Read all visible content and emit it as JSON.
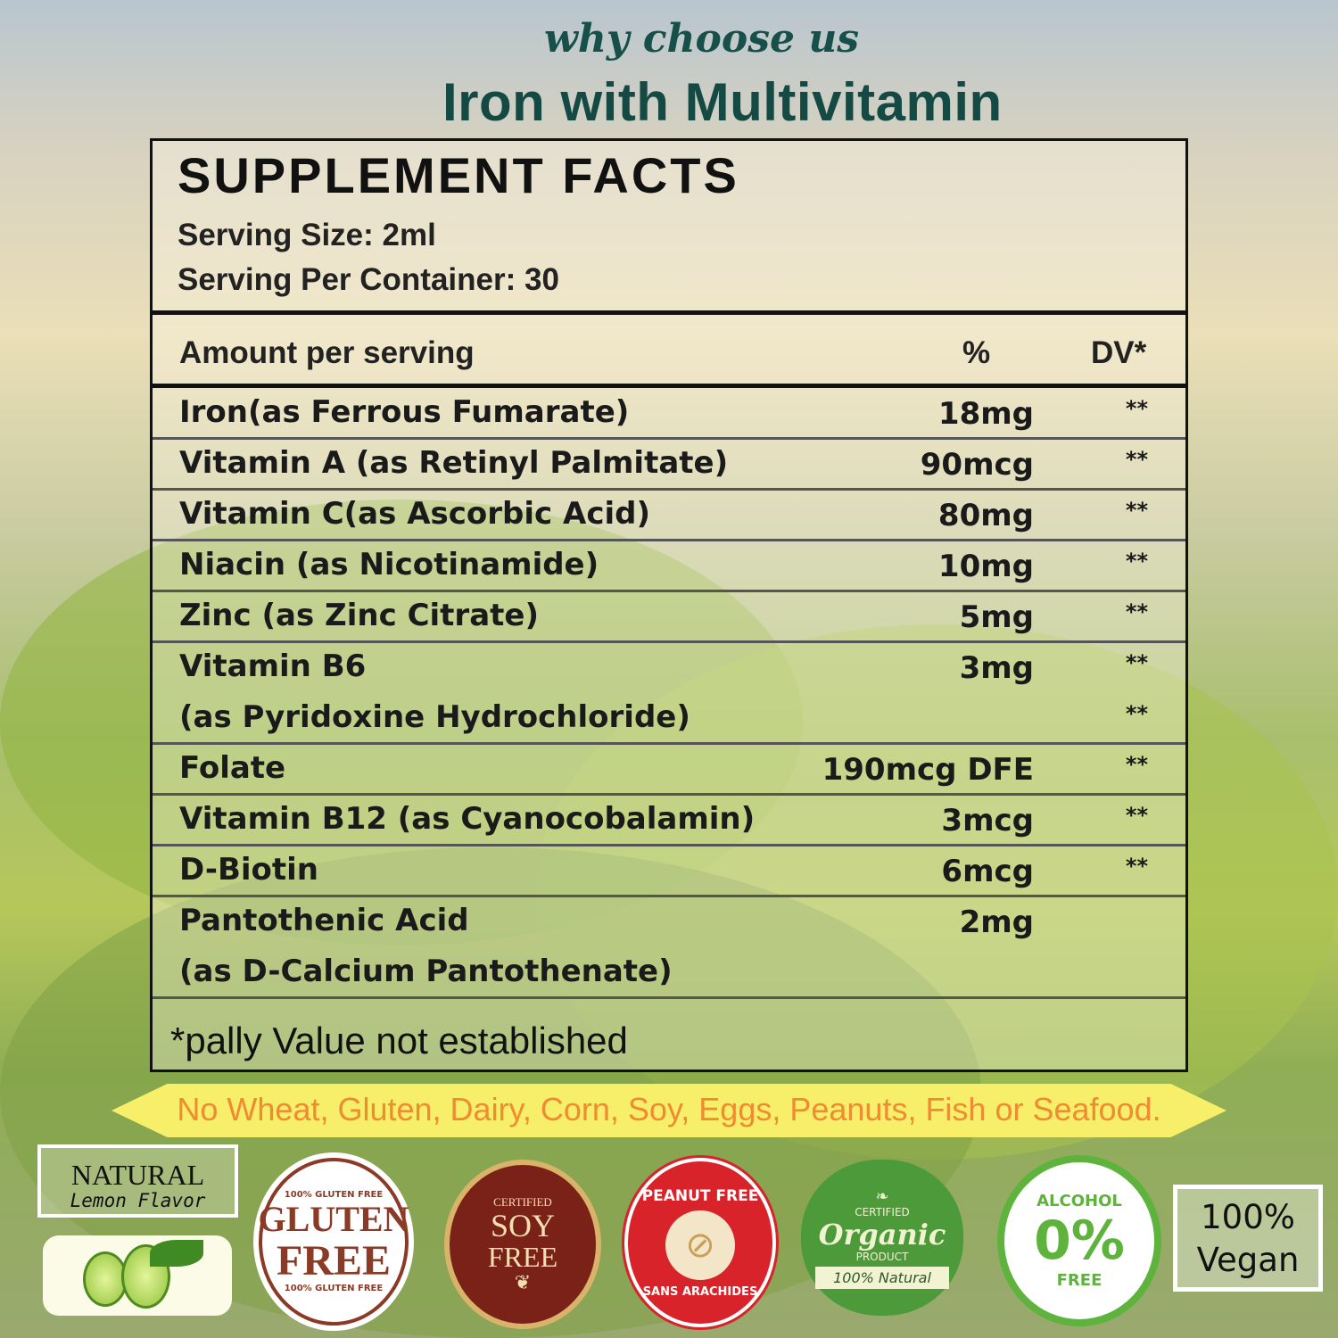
{
  "header": {
    "tagline": "why choose us",
    "title": "Iron with Multivitamin"
  },
  "facts": {
    "title": "SUPPLEMENT FACTS",
    "serving_size": "Serving Size: 2ml",
    "servings_per_container": "Serving Per Container: 30",
    "col_amount": "Amount per serving",
    "col_percent": "%",
    "col_dv": "DV*",
    "rows": [
      {
        "name": "Iron(as Ferrous Fumarate)",
        "amount": "18mg",
        "dv": "**"
      },
      {
        "name": "Vitamin A (as Retinyl Palmitate)",
        "amount": "90mcg",
        "dv": "**"
      },
      {
        "name": "Vitamin C(as Ascorbic Acid)",
        "amount": "80mg",
        "dv": "**"
      },
      {
        "name": "Niacin (as Nicotinamide)",
        "amount": "10mg",
        "dv": "**"
      },
      {
        "name": "Zinc (as Zinc Citrate)",
        "amount": "5mg",
        "dv": "**"
      },
      {
        "name": "Vitamin B6",
        "name2": "(as Pyridoxine Hydrochloride)",
        "amount": "3mg",
        "dv": "**",
        "dv2": "**"
      },
      {
        "name": "Folate",
        "amount": "190mcg DFE",
        "dv": "**"
      },
      {
        "name": "Vitamin B12 (as Cyanocobalamin)",
        "amount": "3mcg",
        "dv": "**"
      },
      {
        "name": "D-Biotin",
        "amount": "6mcg",
        "dv": "**"
      },
      {
        "name": "Pantothenic Acid",
        "name2": "(as D-Calcium Pantothenate)",
        "amount": "2mg"
      }
    ],
    "footnote": "*pally Value not established"
  },
  "banner": "No Wheat, Gluten, Dairy, Corn, Soy, Eggs, Peanuts, Fish or Seafood.",
  "badges": {
    "natural": {
      "line1": "NATURAL",
      "line2": "Lemon Flavor"
    },
    "gluten": {
      "top": "100% GLUTEN FREE",
      "main1": "GLUTEN",
      "main2": "FREE",
      "bottom": "100% GLUTEN FREE"
    },
    "soy": {
      "top": "CERTIFIED",
      "main1": "SOY",
      "main2": "FREE"
    },
    "peanut": {
      "top": "PEANUT FREE",
      "bottom": "SANS ARACHIDES"
    },
    "organic": {
      "top": "CERTIFIED",
      "main": "Organic",
      "sub": "PRODUCT",
      "ribbon": "100% Natural"
    },
    "alcohol": {
      "top": "ALCOHOL",
      "main": "0%",
      "bottom": "FREE"
    },
    "vegan": {
      "line1": "100%",
      "line2": "Vegan"
    }
  },
  "colors": {
    "title": "#154a44",
    "banner_bg": "#f7ef6a",
    "banner_text": "#f08a33"
  }
}
